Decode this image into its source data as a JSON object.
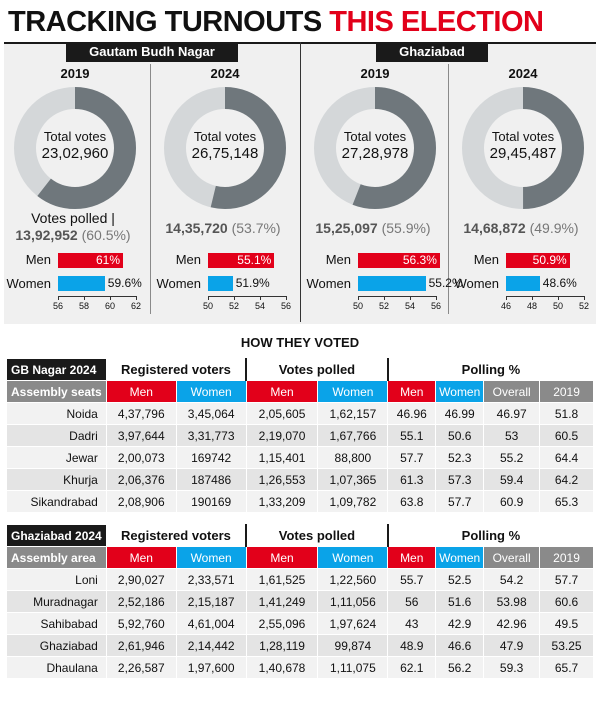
{
  "headline": {
    "part1": "TRACKING TURNOUTS",
    "part2": "THIS ELECTION"
  },
  "colors": {
    "men": "#e2001a",
    "women": "#0aa3e8",
    "donut_dark": "#6f777c",
    "donut_light": "#d4d7d9"
  },
  "chart_data": [
    {
      "type": "pie",
      "district": "Gautam Budh Nagar",
      "year": "2019",
      "total_label": "Total votes",
      "total": "23,02,960",
      "polled_prefix": "Votes polled |",
      "polled": "13,92,952",
      "polled_pct": "(60.5%)",
      "polled_fraction": 0.605,
      "men_pct": 61,
      "men_label": "61%",
      "women_pct": 59.6,
      "women_label": "59.6%",
      "axis_ticks": [
        "56",
        "58",
        "60",
        "62"
      ],
      "axis_min": 56,
      "axis_max": 62
    },
    {
      "type": "pie",
      "district": "Gautam Budh Nagar",
      "year": "2024",
      "total_label": "Total votes",
      "total": "26,75,148",
      "polled": "14,35,720",
      "polled_pct": "(53.7%)",
      "polled_fraction": 0.537,
      "men_pct": 55.1,
      "men_label": "55.1%",
      "women_pct": 51.9,
      "women_label": "51.9%",
      "axis_ticks": [
        "50",
        "52",
        "54",
        "56"
      ],
      "axis_min": 50,
      "axis_max": 56
    },
    {
      "type": "pie",
      "district": "Ghaziabad",
      "year": "2019",
      "total_label": "Total votes",
      "total": "27,28,978",
      "polled": "15,25,097",
      "polled_pct": "(55.9%)",
      "polled_fraction": 0.559,
      "men_pct": 56.3,
      "men_label": "56.3%",
      "women_pct": 55.2,
      "women_label": "55.2%",
      "axis_ticks": [
        "50",
        "52",
        "54",
        "56"
      ],
      "axis_min": 50,
      "axis_max": 56
    },
    {
      "type": "pie",
      "district": "Ghaziabad",
      "year": "2024",
      "total_label": "Total votes",
      "total": "29,45,487",
      "polled": "14,68,872",
      "polled_pct": "(49.9%)",
      "polled_fraction": 0.499,
      "men_pct": 50.9,
      "men_label": "50.9%",
      "women_pct": 48.6,
      "women_label": "48.6%",
      "axis_ticks": [
        "46",
        "48",
        "50",
        "52"
      ],
      "axis_min": 46,
      "axis_max": 52
    }
  ],
  "labels": {
    "men": "Men",
    "women": "Women",
    "gb": "Gautam Budh Nagar",
    "gzb": "Ghaziabad"
  },
  "section_title": "HOW THEY VOTED",
  "tables": [
    {
      "title": "GB Nagar 2024",
      "first_col": "Assembly seats",
      "groups": [
        "Registered voters",
        "Votes polled",
        "Polling %"
      ],
      "cols": [
        "Men",
        "Women",
        "Men",
        "Women",
        "Men",
        "Women",
        "Overall",
        "2019"
      ],
      "rows": [
        [
          "Noida",
          "4,37,796",
          "3,45,064",
          "2,05,605",
          "1,62,157",
          "46.96",
          "46.99",
          "46.97",
          "51.8"
        ],
        [
          "Dadri",
          "3,97,644",
          "3,31,773",
          "2,19,070",
          "1,67,766",
          "55.1",
          "50.6",
          "53",
          "60.5"
        ],
        [
          "Jewar",
          "2,00,073",
          "169742",
          "1,15,401",
          "88,800",
          "57.7",
          "52.3",
          "55.2",
          "64.4"
        ],
        [
          "Khurja",
          "2,06,376",
          "187486",
          "1,26,553",
          "1,07,365",
          "61.3",
          "57.3",
          "59.4",
          "64.2"
        ],
        [
          "Sikandrabad",
          "2,08,906",
          "190169",
          "1,33,209",
          "1,09,782",
          "63.8",
          "57.7",
          "60.9",
          "65.3"
        ]
      ]
    },
    {
      "title": "Ghaziabad  2024",
      "first_col": "Assembly area",
      "groups": [
        "Registered voters",
        "Votes polled",
        "Polling %"
      ],
      "cols": [
        "Men",
        "Women",
        "Men",
        "Women",
        "Men",
        "Women",
        "Overall",
        "2019"
      ],
      "rows": [
        [
          "Loni",
          "2,90,027",
          "2,33,571",
          "1,61,525",
          "1,22,560",
          "55.7",
          "52.5",
          "54.2",
          "57.7"
        ],
        [
          "Muradnagar",
          "2,52,186",
          "2,15,187",
          "1,41,249",
          "1,11,056",
          "56",
          "51.6",
          "53.98",
          "60.6"
        ],
        [
          "Sahibabad",
          "5,92,760",
          "4,61,004",
          "2,55,096",
          "1,97,624",
          "43",
          "42.9",
          "42.96",
          "49.5"
        ],
        [
          "Ghaziabad",
          "2,61,946",
          "2,14,442",
          "1,28,119",
          "99,874",
          "48.9",
          "46.6",
          "47.9",
          "53.25"
        ],
        [
          "Dhaulana",
          "2,26,587",
          "1,97,600",
          "1,40,678",
          "1,11,075",
          "62.1",
          "56.2",
          "59.3",
          "65.7"
        ]
      ]
    }
  ]
}
